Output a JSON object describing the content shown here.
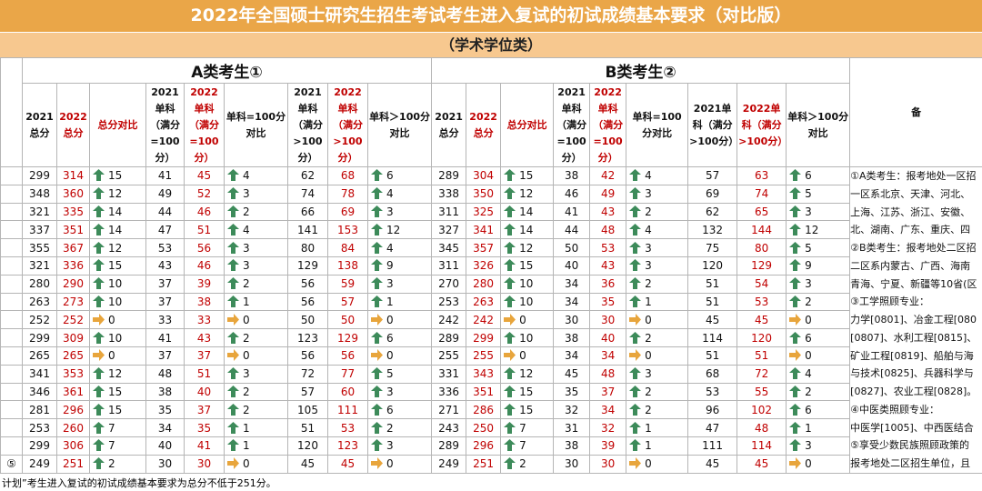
{
  "header": {
    "title": "2022年全国硕士研究生招生考试考生进入复试的初试成绩基本要求（对比版）",
    "subtitle": "（学术学位类）"
  },
  "table": {
    "groups": [
      "A类考生①",
      "B类考生②"
    ],
    "columns": [
      "2021总分",
      "2022总分",
      "总分对比",
      "2021单科（满分=100分）",
      "2022单科（满分=100分）",
      "单科=100分对比",
      "2021单科（满分>100分）",
      "2022单科（满分>100分）",
      "单科＞100分对比"
    ],
    "notes_header": "备",
    "row_marker": "⑤",
    "rows": [
      [
        299,
        314,
        15,
        41,
        45,
        4,
        62,
        68,
        6,
        289,
        304,
        15,
        38,
        42,
        4,
        57,
        63,
        6
      ],
      [
        348,
        360,
        12,
        49,
        52,
        3,
        74,
        78,
        4,
        338,
        350,
        12,
        46,
        49,
        3,
        69,
        74,
        5
      ],
      [
        321,
        335,
        14,
        44,
        46,
        2,
        66,
        69,
        3,
        311,
        325,
        14,
        41,
        43,
        2,
        62,
        65,
        3
      ],
      [
        337,
        351,
        14,
        47,
        51,
        4,
        141,
        153,
        12,
        327,
        341,
        14,
        44,
        48,
        4,
        132,
        144,
        12
      ],
      [
        355,
        367,
        12,
        53,
        56,
        3,
        80,
        84,
        4,
        345,
        357,
        12,
        50,
        53,
        3,
        75,
        80,
        5
      ],
      [
        321,
        336,
        15,
        43,
        46,
        3,
        129,
        138,
        9,
        311,
        326,
        15,
        40,
        43,
        3,
        120,
        129,
        9
      ],
      [
        280,
        290,
        10,
        37,
        39,
        2,
        56,
        59,
        3,
        270,
        280,
        10,
        34,
        36,
        2,
        51,
        54,
        3
      ],
      [
        263,
        273,
        10,
        37,
        38,
        1,
        56,
        57,
        1,
        253,
        263,
        10,
        34,
        35,
        1,
        51,
        53,
        2
      ],
      [
        252,
        252,
        0,
        33,
        33,
        0,
        50,
        50,
        0,
        242,
        242,
        0,
        30,
        30,
        0,
        45,
        45,
        0
      ],
      [
        299,
        309,
        10,
        41,
        43,
        2,
        123,
        129,
        6,
        289,
        299,
        10,
        38,
        40,
        2,
        114,
        120,
        6
      ],
      [
        265,
        265,
        0,
        37,
        37,
        0,
        56,
        56,
        0,
        255,
        255,
        0,
        34,
        34,
        0,
        51,
        51,
        0
      ],
      [
        341,
        353,
        12,
        48,
        51,
        3,
        72,
        77,
        5,
        331,
        343,
        12,
        45,
        48,
        3,
        68,
        72,
        4
      ],
      [
        346,
        361,
        15,
        38,
        40,
        2,
        57,
        60,
        3,
        336,
        351,
        15,
        35,
        37,
        2,
        53,
        55,
        2
      ],
      [
        281,
        296,
        15,
        35,
        37,
        2,
        105,
        111,
        6,
        271,
        286,
        15,
        32,
        34,
        2,
        96,
        102,
        6
      ],
      [
        253,
        260,
        7,
        34,
        35,
        1,
        51,
        53,
        2,
        243,
        250,
        7,
        31,
        32,
        1,
        47,
        48,
        1
      ],
      [
        299,
        306,
        7,
        40,
        41,
        1,
        120,
        123,
        3,
        289,
        296,
        7,
        38,
        39,
        1,
        111,
        114,
        3
      ],
      [
        249,
        251,
        2,
        30,
        30,
        0,
        45,
        45,
        0,
        249,
        251,
        2,
        30,
        30,
        0,
        45,
        45,
        0
      ]
    ],
    "notes": [
      "①A类考生：报考地处一区招",
      "一区系北京、天津、河北、",
      "上海、江苏、浙江、安徽、",
      "北、湖南、广东、重庆、四",
      "②B类考生：报考地处二区招",
      "二区系内蒙古、广西、海南",
      "青海、宁夏、新疆等10省(区",
      "③工学照顾专业：",
      "力学[0801]、冶金工程[080",
      "[0807]、水利工程[0815]、",
      "矿业工程[0819]、船舶与海",
      "与技术[0825]、兵器科学与",
      "[0827]、农业工程[0828]。",
      "④中医类照顾专业：",
      "中医学[1005]、中西医结合",
      "⑤享受少数民族照顾政策的",
      "报考地处二区招生单位，且"
    ],
    "footer": "计划”考生进入复试的初试成绩基本要求为总分不低于251分。"
  }
}
